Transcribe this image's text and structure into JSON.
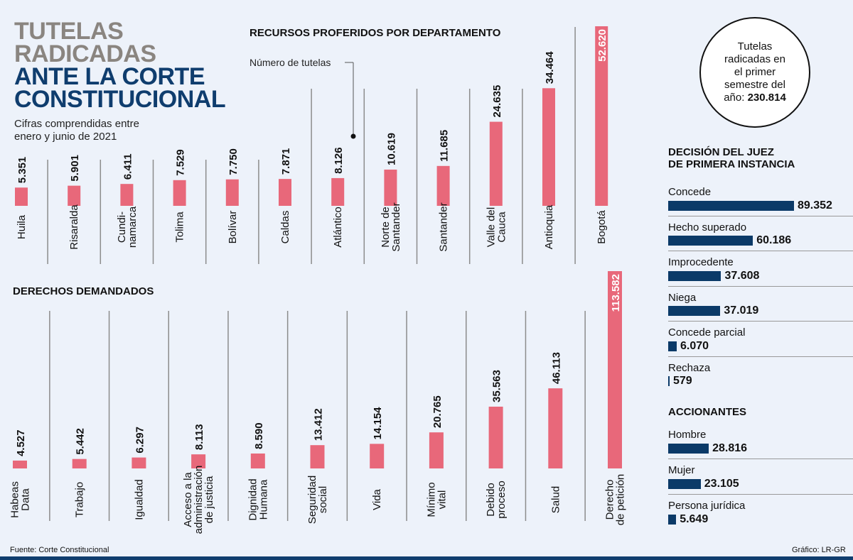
{
  "header": {
    "title_line1": "TUTELAS",
    "title_line2": "RADICADAS",
    "title_line3": "ANTE LA CORTE",
    "title_line4": "CONSTITUCIONAL",
    "subtitle_line1": "Cifras comprendidas entre",
    "subtitle_line2": "enero y junio de 2021"
  },
  "callout": {
    "text_line1": "Tutelas",
    "text_line2": "radicadas en",
    "text_line3": "el primer",
    "text_line4": "semestre del",
    "text_prefix": "año: ",
    "total": "230.814"
  },
  "colors": {
    "bar_pink": "#e8687a",
    "bar_navy": "#0b3a68",
    "title_blue": "#0f3d6e",
    "title_grey": "#8a8580"
  },
  "chart_data": [
    {
      "type": "bar",
      "title": "RECURSOS PROFERIDOS POR DEPARTAMENTO",
      "subtitle": "Número de tutelas",
      "categories": [
        [
          "Huila"
        ],
        [
          "Risaralda"
        ],
        [
          "Cundi-",
          "namarca"
        ],
        [
          "Tolima"
        ],
        [
          "Bolívar"
        ],
        [
          "Caldas"
        ],
        [
          "Atlántico"
        ],
        [
          "Norte de",
          "Santander"
        ],
        [
          "Santander"
        ],
        [
          "Valle del",
          "Cauca"
        ],
        [
          "Antioquia"
        ],
        [
          "Bogotá"
        ]
      ],
      "values": [
        5351,
        5901,
        6411,
        7529,
        7750,
        7871,
        8126,
        10619,
        11685,
        24635,
        34464,
        52620
      ],
      "labels": [
        "5.351",
        "5.901",
        "6.411",
        "7.529",
        "7.750",
        "7.871",
        "8.126",
        "10.619",
        "11.685",
        "24.635",
        "34.464",
        "52.620"
      ],
      "orientation": "vertical"
    },
    {
      "type": "bar",
      "title": "DERECHOS DEMANDADOS",
      "categories": [
        [
          "Habeas",
          "Data"
        ],
        [
          "Trabajo"
        ],
        [
          "Igualdad"
        ],
        [
          "Acceso a la",
          "administración",
          "de justicia"
        ],
        [
          "Dignidad",
          "Humana"
        ],
        [
          "Seguridad",
          "social"
        ],
        [
          "Vida"
        ],
        [
          "Mínimo",
          "vital"
        ],
        [
          "Debido",
          "proceso"
        ],
        [
          "Salud"
        ],
        [
          "Derecho",
          "de petición"
        ]
      ],
      "values": [
        4527,
        5442,
        6297,
        8113,
        8590,
        13412,
        14154,
        20765,
        35563,
        46113,
        113582
      ],
      "labels": [
        "4.527",
        "5.442",
        "6.297",
        "8.113",
        "8.590",
        "13.412",
        "14.154",
        "20.765",
        "35.563",
        "46.113",
        "113.582"
      ],
      "orientation": "vertical"
    },
    {
      "type": "bar",
      "title": "DECISIÓN DEL JUEZ DE PRIMERA INSTANCIA",
      "categories": [
        "Concede",
        "Hecho superado",
        "Improcedente",
        "Niega",
        "Concede parcial",
        "Rechaza"
      ],
      "values": [
        89352,
        60186,
        37608,
        37019,
        6070,
        579
      ],
      "labels": [
        "89.352",
        "60.186",
        "37.608",
        "37.019",
        "6.070",
        "579"
      ],
      "orientation": "horizontal"
    },
    {
      "type": "bar",
      "title": "ACCIONANTES",
      "categories": [
        "Hombre",
        "Mujer",
        "Persona jurídica"
      ],
      "values": [
        28816,
        23105,
        5649
      ],
      "labels": [
        "28.816",
        "23.105",
        "5.649"
      ],
      "orientation": "horizontal"
    }
  ],
  "footer": {
    "source": "Fuente: Corte Constitucional",
    "credit": "Gráfico: LR-GR"
  }
}
